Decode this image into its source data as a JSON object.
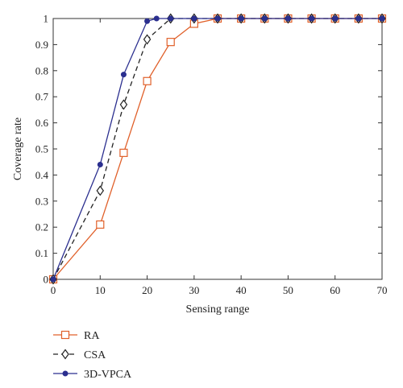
{
  "chart_data": {
    "type": "line",
    "title": "",
    "xlabel": "Sensing range",
    "ylabel": "Coverage rate",
    "xlim": [
      0,
      70
    ],
    "ylim": [
      0,
      1
    ],
    "xticks": [
      0,
      10,
      20,
      30,
      40,
      50,
      60,
      70
    ],
    "yticks": [
      0,
      0.1,
      0.2,
      0.3,
      0.4,
      0.5,
      0.6,
      0.7,
      0.8,
      0.9,
      1
    ],
    "xtick_labels": [
      "0",
      "10",
      "20",
      "30",
      "40",
      "50",
      "60",
      "70"
    ],
    "ytick_labels": [
      "0",
      "0.1",
      "0.2",
      "0.3",
      "0.4",
      "0.5",
      "0.6",
      "0.7",
      "0.8",
      "0.9",
      "1"
    ],
    "grid": false,
    "legend_position": "bottom-left, below plot",
    "series": [
      {
        "name": "RA",
        "color": "#e0602a",
        "line_style": "solid",
        "marker": "square-open",
        "x": [
          0,
          10,
          15,
          20,
          25,
          30,
          35,
          40,
          45,
          50,
          55,
          60,
          65,
          70
        ],
        "y": [
          0,
          0.21,
          0.485,
          0.76,
          0.91,
          0.98,
          1,
          1,
          1,
          1,
          1,
          1,
          1,
          1
        ]
      },
      {
        "name": "CSA",
        "color": "#222222",
        "line_style": "dashed",
        "marker": "diamond-open",
        "x": [
          0,
          10,
          15,
          20,
          25,
          30,
          35,
          40,
          45,
          50,
          55,
          60,
          65,
          70
        ],
        "y": [
          0,
          0.34,
          0.67,
          0.92,
          1,
          1,
          1,
          1,
          1,
          1,
          1,
          1,
          1,
          1
        ]
      },
      {
        "name": "3D-VPCA",
        "color": "#2b2f8f",
        "line_style": "solid",
        "marker": "circle-filled",
        "x": [
          0,
          10,
          15,
          20,
          22,
          25,
          30,
          35,
          40,
          45,
          50,
          55,
          60,
          65,
          70
        ],
        "y": [
          0,
          0.44,
          0.785,
          0.99,
          1,
          1,
          1,
          1,
          1,
          1,
          1,
          1,
          1,
          1,
          1
        ]
      }
    ]
  }
}
